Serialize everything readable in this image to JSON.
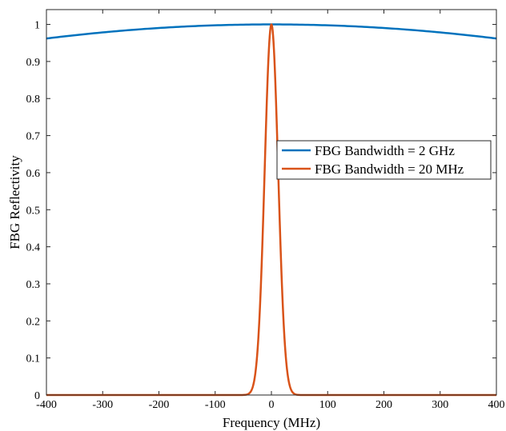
{
  "chart_data": {
    "type": "line",
    "title": "",
    "xlabel": "Frequency (MHz)",
    "ylabel": "FBG Reflectivity",
    "xlim": [
      -400,
      400
    ],
    "ylim": [
      0,
      1.04
    ],
    "x_ticks": [
      -400,
      -300,
      -200,
      -100,
      0,
      100,
      200,
      300,
      400
    ],
    "y_ticks": [
      0,
      0.1,
      0.2,
      0.3,
      0.4,
      0.5,
      0.6,
      0.7,
      0.8,
      0.9,
      1
    ],
    "x_tick_labels": [
      "-400",
      "-300",
      "-200",
      "-100",
      "0",
      "100",
      "200",
      "300",
      "400"
    ],
    "y_tick_labels": [
      "0",
      "0.1",
      "0.2",
      "0.3",
      "0.4",
      "0.5",
      "0.6",
      "0.7",
      "0.8",
      "0.9",
      "1"
    ],
    "grid": false,
    "legend_position": "center-right",
    "series": [
      {
        "name": "FBG Bandwidth = 2 GHz",
        "color": "#0072BD",
        "x": [
          -400,
          -350,
          -300,
          -250,
          -200,
          -150,
          -100,
          -50,
          0,
          50,
          100,
          150,
          200,
          250,
          300,
          350,
          400
        ],
        "y": [
          0.962,
          0.971,
          0.979,
          0.985,
          0.99,
          0.994,
          0.997,
          0.999,
          1.0,
          0.999,
          0.997,
          0.994,
          0.99,
          0.985,
          0.979,
          0.971,
          0.962
        ]
      },
      {
        "name": "FBG Bandwidth = 20 MHz",
        "color": "#D95319",
        "x": [
          -400,
          -80,
          -60,
          -50,
          -45,
          -40,
          -35,
          -30,
          -25,
          -20,
          -15,
          -10,
          -5,
          0,
          5,
          10,
          15,
          20,
          25,
          30,
          35,
          40,
          45,
          50,
          60,
          80,
          400
        ],
        "y": [
          0,
          0,
          0.0001,
          0.0009,
          0.003,
          0.011,
          0.033,
          0.083,
          0.177,
          0.328,
          0.535,
          0.757,
          0.933,
          1.0,
          0.933,
          0.757,
          0.535,
          0.328,
          0.177,
          0.083,
          0.033,
          0.011,
          0.003,
          0.0009,
          0.0001,
          0,
          0
        ]
      }
    ]
  }
}
